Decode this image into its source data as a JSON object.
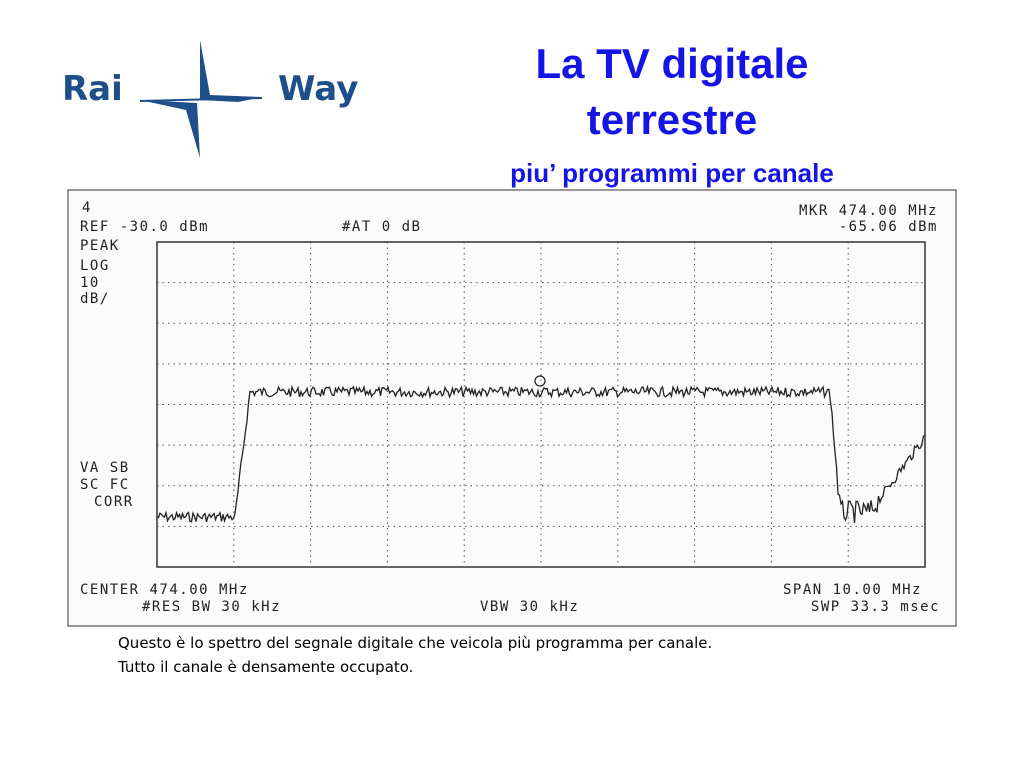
{
  "logo": {
    "left": "Rai",
    "right": "Way"
  },
  "header": {
    "title_lines": [
      "La TV digitale",
      "terrestre"
    ],
    "subtitle": "piu’ programmi per canale"
  },
  "analyzer": {
    "marker_id": "4",
    "ref": "REF -30.0 dBm",
    "attenuation": "#AT 0 dB",
    "marker": "MKR 474.00 MHz",
    "marker_level": "-65.06 dBm",
    "side_labels": [
      "PEAK",
      "LOG",
      "10",
      "dB/"
    ],
    "correction_labels": [
      "VA SB",
      "SC FC",
      "CORR"
    ],
    "center": "CENTER 474.00 MHz",
    "span": "SPAN 10.00 MHz",
    "res_bw": "#RES BW 30 kHz",
    "vbw": "VBW 30 kHz",
    "sweep": "SWP 33.3 msec"
  },
  "caption": [
    "Questo è lo spettro del segnale digitale che veicola più programma per canale.",
    "Tutto il canale è densamente occupato."
  ]
}
